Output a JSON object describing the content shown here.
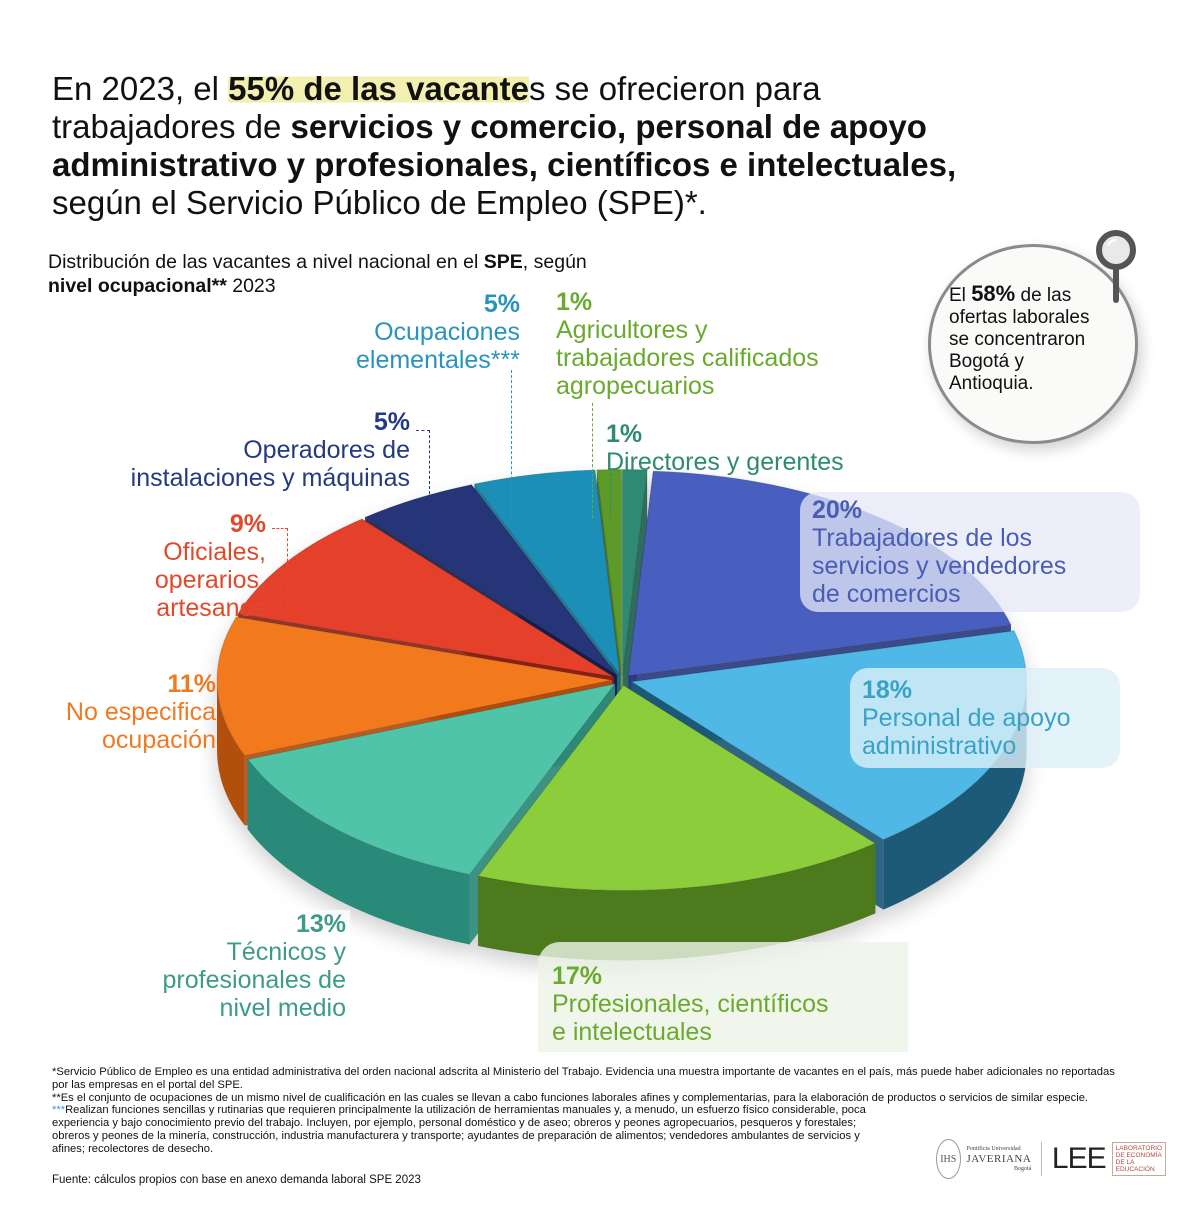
{
  "headline": {
    "part1": "En 2023, el ",
    "highlight_bold": "55% de las vacante",
    "highlight_rest": "s se ofrecieron para",
    "line2_normal": "trabajadores de ",
    "line2_bold": "servicios y comercio, personal de apoyo",
    "line3_bold": "administrativo y profesionales, científicos e intelectuales,",
    "line4": "según el Servicio Público de Empleo (SPE)*."
  },
  "subtitle": {
    "line1_normal": "Distribución de las vacantes a nivel nacional en el ",
    "line1_bold": "SPE",
    "line1_end": ", según",
    "line2_bold": "nivel ocupacional**",
    "line2_end": " 2023"
  },
  "callout": {
    "prefix": "El ",
    "pct": "58%",
    "text1": " de las",
    "text2": "ofertas laborales",
    "text3": "se concentraron",
    "text4": "Bogotá y",
    "text5": "Antioquia."
  },
  "labels": {
    "elementales": {
      "pct": "5%",
      "line1": "Ocupaciones",
      "line2": "elementales***",
      "color": "#2a93bd"
    },
    "agricultores": {
      "pct": "1%",
      "line1": "Agricultores y",
      "line2": "trabajadores calificados",
      "line3": "agropecuarios",
      "color": "#6aaa2e"
    },
    "directores": {
      "pct": "1%",
      "line1": "Directores y gerentes",
      "color": "#2e8a72"
    },
    "operadores": {
      "pct": "5%",
      "line1": "Operadores de",
      "line2": "instalaciones y máquinas",
      "color": "#243a80"
    },
    "oficiales": {
      "pct": "9%",
      "line1": "Oficiales,",
      "line2": "operarios,",
      "line3": "artesanos",
      "color": "#e04a2c"
    },
    "no_especifica": {
      "pct": "11%",
      "line1": "No especifica",
      "line2": "ocupación",
      "color": "#f07a22"
    },
    "servicios": {
      "pct": "20%",
      "line1": "Trabajadores de los",
      "line2": "servicios y vendedores",
      "line3": "de comercios",
      "color": "#4a5db5"
    },
    "apoyo": {
      "pct": "18%",
      "line1": "Personal de apoyo",
      "line2": "administrativo",
      "color": "#3aa2c6"
    },
    "tecnicos": {
      "pct": "13%",
      "line1": "Técnicos y",
      "line2": "profesionales de",
      "line3": "nivel medio",
      "color": "#3d9b8a"
    },
    "profesionales": {
      "pct": "17%",
      "line1": "Profesionales, científicos",
      "line2": "e intelectuales",
      "color": "#6aaa2e"
    }
  },
  "footnotes": {
    "fn1_a": "*Servicio Público de Empleo es una entidad administrativa del orden nacional adscrita al Ministerio del Trabajo. Evidencia una muestra importante de vacantes en el país, más puede haber adicionales no reportadas",
    "fn1_b": "por las empresas en el portal del SPE.",
    "fn2": "**Es el conjunto de ocupaciones de un mismo nivel de cualificación en las cuales se llevan a cabo funciones laborales afines y complementarias, para la elaboración de productos o servicios de similar especie.",
    "fn3_star": "***",
    "fn3": "Realizan funciones sencillas y rutinarias que requieren principalmente la utilización de herramientas manuales y, a menudo, un esfuerzo físico considerable, poca experiencia y bajo conocimiento previo del trabajo. Incluyen, por ejemplo,  personal doméstico y de aseo; obreros y peones agropecuarios, pesqueros y forestales; obreros y peones de la minería, construcción, industria manufacturera y transporte; ayudantes de preparación de alimentos; vendedores ambulantes de servicios y afines; recolectores de desecho.",
    "source": "Fuente: cálculos propios con base en anexo demanda laboral SPE 2023"
  },
  "logos": {
    "seal": "IHS",
    "jav_small": "Pontificia Universidad",
    "jav_big": "JAVERIANA",
    "jav_city": "Bogotá",
    "lee": "LEE",
    "lee_box1": "LABORATORIO",
    "lee_box2": "DE ECONOMÍA",
    "lee_box3": "DE LA EDUCACIÓN"
  },
  "chart_data": {
    "type": "pie",
    "title": "Distribución de las vacantes a nivel nacional en el SPE, según nivel ocupacional** 2023",
    "categories": [
      "Directores y gerentes",
      "Trabajadores de los servicios y vendedores de comercios",
      "Personal de apoyo administrativo",
      "Profesionales, científicos e intelectuales",
      "Técnicos y profesionales de nivel medio",
      "No especifica ocupación",
      "Oficiales, operarios, artesanos",
      "Operadores de instalaciones y máquinas",
      "Ocupaciones elementales***",
      "Agricultores y trabajadores calificados agropecuarios"
    ],
    "values": [
      1,
      20,
      18,
      17,
      13,
      11,
      9,
      5,
      5,
      1
    ],
    "unit": "%",
    "colors": [
      "#2e8a72",
      "#4a5fc0",
      "#4fb8e6",
      "#8ccd3a",
      "#4fc4a8",
      "#f27a1e",
      "#e5402a",
      "#253578",
      "#1f8fb8",
      "#5c9a2c"
    ],
    "side_colors": [
      "#1e5e4e",
      "#2a3a7e",
      "#1f5a78",
      "#4e7a1c",
      "#2c8a7a",
      "#b34f10",
      "#8a2418",
      "#161f4a",
      "#176a88",
      "#3a6a1a"
    ],
    "annotations": [
      "El 58% de las ofertas laborales se concentraron Bogotá y Antioquia."
    ],
    "legend_position": "labels around pie"
  }
}
